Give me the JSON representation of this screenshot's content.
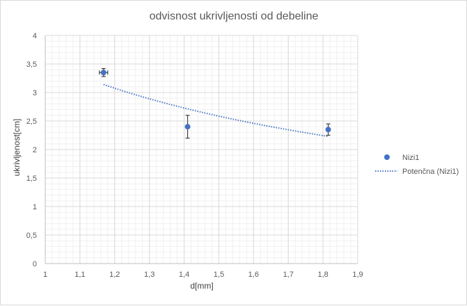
{
  "chart_data": {
    "type": "scatter",
    "title": "odvisnost ukrivljenosti od debeline",
    "xlabel": "d[mm]",
    "ylabel": "ukrivljenost[cm]",
    "xlim": [
      1,
      1.9
    ],
    "ylim": [
      0,
      4
    ],
    "x_ticks": [
      1,
      1.1,
      1.2,
      1.3,
      1.4,
      1.5,
      1.6,
      1.7,
      1.8,
      1.9
    ],
    "x_tick_labels": [
      "1",
      "1,1",
      "1,2",
      "1,3",
      "1,4",
      "1,5",
      "1,6",
      "1,7",
      "1,8",
      "1,9"
    ],
    "y_ticks": [
      0,
      0.5,
      1,
      1.5,
      2,
      2.5,
      3,
      3.5,
      4
    ],
    "y_tick_labels": [
      "0",
      "0,5",
      "1",
      "1,5",
      "2",
      "2,5",
      "3",
      "3,5",
      "4"
    ],
    "grid": true,
    "minor_grid": true,
    "legend_position": "right",
    "series": [
      {
        "name": "Nizi1",
        "color": "#4472c4",
        "marker": "circle",
        "points": [
          {
            "x": 1.168,
            "y": 3.35,
            "y_err": 0.07,
            "x_err": 0.012
          },
          {
            "x": 1.41,
            "y": 2.4,
            "y_err": 0.2
          },
          {
            "x": 1.815,
            "y": 2.35,
            "y_err": 0.1
          }
        ]
      }
    ],
    "trendline": {
      "name": "Potenčna (Nizi1)",
      "type": "power",
      "style": "dotted",
      "color": "#4472c4",
      "x_start": 1.168,
      "x_end": 1.815,
      "y_start": 3.14,
      "y_end": 2.23
    },
    "error_bar_color": "#404040"
  }
}
